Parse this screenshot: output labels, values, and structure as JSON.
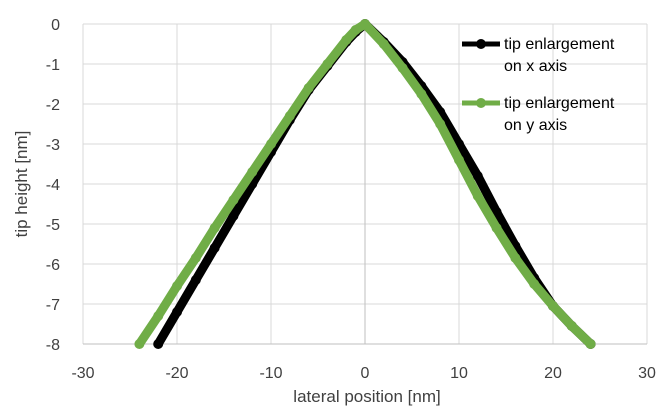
{
  "chart_data": {
    "type": "line",
    "title": "",
    "xlabel": "lateral position [nm]",
    "ylabel": "tip height [nm]",
    "xlim": [
      -30,
      30
    ],
    "ylim": [
      -8,
      0
    ],
    "xticks": [
      -30,
      -20,
      -10,
      0,
      10,
      20,
      30
    ],
    "yticks": [
      0,
      -1,
      -2,
      -3,
      -4,
      -5,
      -6,
      -7,
      -8
    ],
    "grid": true,
    "legend_position": "top-right",
    "series": [
      {
        "name": "tip enlargement on x axis",
        "color": "#000000",
        "x": [
          -22.0,
          -20.0,
          -18.0,
          -16.0,
          -14.0,
          -12.0,
          -10.0,
          -8.0,
          -6.0,
          -4.0,
          -2.0,
          -1.0,
          0.0,
          2.0,
          4.0,
          6.0,
          8.0,
          10.0,
          12.0,
          14.0,
          16.0,
          18.0,
          20.0,
          22.0,
          24.0
        ],
        "y": [
          -8.0,
          -7.2,
          -6.4,
          -5.6,
          -4.8,
          -4.0,
          -3.2,
          -2.4,
          -1.65,
          -1.05,
          -0.45,
          -0.2,
          0.0,
          -0.45,
          -0.95,
          -1.55,
          -2.2,
          -3.0,
          -3.8,
          -4.7,
          -5.55,
          -6.35,
          -7.05,
          -7.55,
          -8.0
        ]
      },
      {
        "name": "tip enlargement on y axis",
        "color": "#70ad47",
        "x": [
          -24.0,
          -22.0,
          -20.0,
          -18.0,
          -16.0,
          -14.0,
          -12.0,
          -10.0,
          -8.0,
          -6.0,
          -4.0,
          -2.0,
          -1.0,
          0.0,
          2.0,
          4.0,
          6.0,
          8.0,
          10.0,
          12.0,
          14.0,
          16.0,
          18.0,
          20.0,
          22.0,
          24.0
        ],
        "y": [
          -8.0,
          -7.3,
          -6.55,
          -5.85,
          -5.1,
          -4.4,
          -3.7,
          -3.0,
          -2.3,
          -1.6,
          -1.0,
          -0.4,
          -0.15,
          0.0,
          -0.5,
          -1.1,
          -1.75,
          -2.5,
          -3.4,
          -4.3,
          -5.1,
          -5.85,
          -6.5,
          -7.05,
          -7.55,
          -8.0
        ]
      }
    ]
  }
}
